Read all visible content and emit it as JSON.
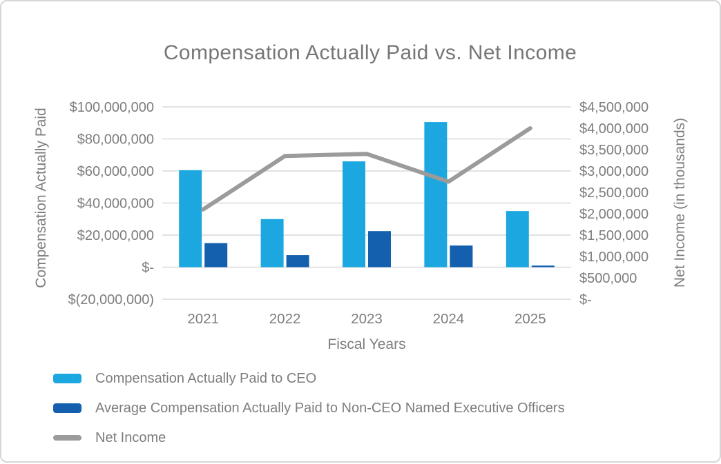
{
  "title": "Compensation Actually Paid vs. Net Income",
  "chart_data": {
    "type": "bar",
    "subtype": "combo-bar-line-dual-axis",
    "title": "Compensation Actually Paid vs. Net Income",
    "xlabel": "Fiscal Years",
    "categories": [
      "2021",
      "2022",
      "2023",
      "2024",
      "2025"
    ],
    "series": [
      {
        "name": "Compensation Actually Paid to CEO",
        "type": "bar",
        "axis": "left",
        "color": "#1CA7E0",
        "values": [
          60500000,
          30000000,
          66000000,
          90500000,
          35000000
        ]
      },
      {
        "name": "Average Compensation Actually Paid to Non-CEO Named Executive Officers",
        "type": "bar",
        "axis": "left",
        "color": "#1560AE",
        "values": [
          15000000,
          7500000,
          22500000,
          13500000,
          1000000
        ]
      },
      {
        "name": "Net Income",
        "type": "line",
        "axis": "right",
        "color": "#9B9B9B",
        "values": [
          2100000,
          3350000,
          3400000,
          2750000,
          4000000
        ]
      }
    ],
    "left_axis": {
      "label": "Compensation Actually Paid",
      "ylim": [
        -20000000,
        100000000
      ],
      "ticks": [
        {
          "label": "$100,000,000",
          "value": 100000000
        },
        {
          "label": "$80,000,000",
          "value": 80000000
        },
        {
          "label": "$60,000,000",
          "value": 60000000
        },
        {
          "label": "$40,000,000",
          "value": 40000000
        },
        {
          "label": "$20,000,000",
          "value": 20000000
        },
        {
          "label": "$-",
          "value": 0
        },
        {
          "label": "$(20,000,000)",
          "value": -20000000
        }
      ]
    },
    "right_axis": {
      "label": "Net Income (in thousands)",
      "ylim": [
        0,
        4500000
      ],
      "ticks": [
        {
          "label": "$4,500,000",
          "value": 4500000
        },
        {
          "label": "$4,000,000",
          "value": 4000000
        },
        {
          "label": "$3,500,000",
          "value": 3500000
        },
        {
          "label": "$3,000,000",
          "value": 3000000
        },
        {
          "label": "$2,500,000",
          "value": 2500000
        },
        {
          "label": "$2,000,000",
          "value": 2000000
        },
        {
          "label": "$1,500,000",
          "value": 1500000
        },
        {
          "label": "$1,000,000",
          "value": 1000000
        },
        {
          "label": "$500,000",
          "value": 500000
        },
        {
          "label": "$-",
          "value": 0
        }
      ]
    },
    "grid": true,
    "legend_position": "bottom-left",
    "colors": {
      "grid": "#D9D9D9",
      "text": "#7D7D7D",
      "title": "#767676",
      "frame_border": "#D6D6D6"
    }
  },
  "legend": {
    "items": [
      {
        "label": "Compensation Actually Paid to CEO",
        "color": "#1CA7E0",
        "shape": "bar"
      },
      {
        "label": "Average Compensation Actually Paid to Non-CEO Named Executive Officers",
        "color": "#1560AE",
        "shape": "bar"
      },
      {
        "label": "Net Income",
        "color": "#9B9B9B",
        "shape": "line"
      }
    ]
  }
}
